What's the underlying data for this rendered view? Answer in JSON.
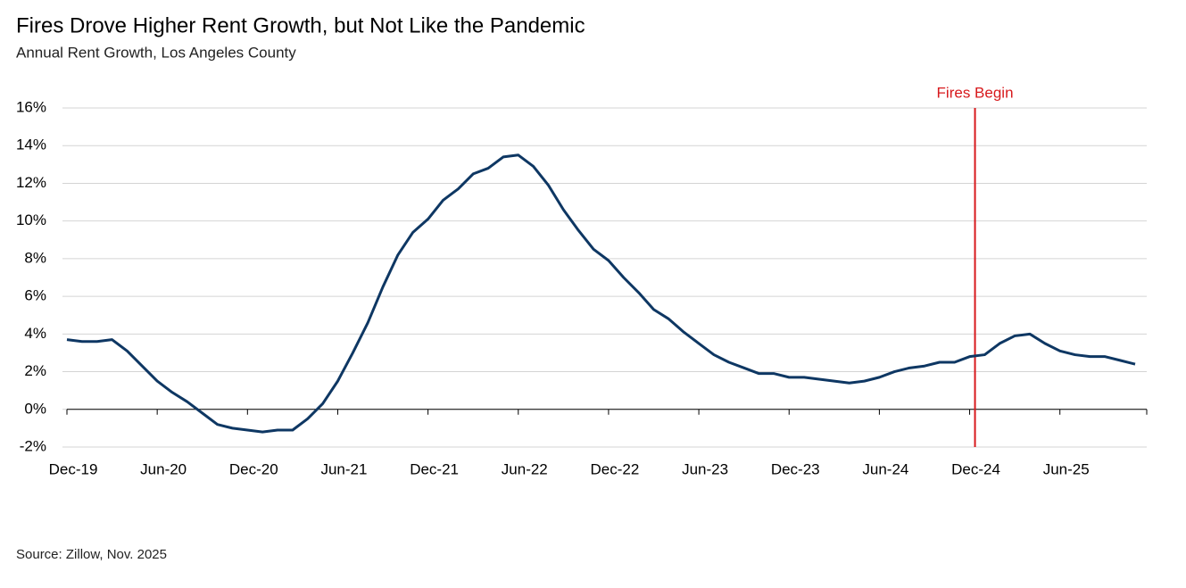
{
  "chart_data": {
    "type": "line",
    "title": "Fires Drove Higher Rent Growth, but Not Like the Pandemic",
    "subtitle": "Annual Rent Growth, Los Angeles County",
    "source": "Source: Zillow, Nov. 2025",
    "categories": [
      "Dec-19",
      null,
      null,
      null,
      null,
      null,
      "Jun-20",
      null,
      null,
      null,
      null,
      null,
      "Dec-20",
      null,
      null,
      null,
      null,
      null,
      "Jun-21",
      null,
      null,
      null,
      null,
      null,
      "Dec-21",
      null,
      null,
      null,
      null,
      null,
      "Jun-22",
      null,
      null,
      null,
      null,
      null,
      "Dec-22",
      null,
      null,
      null,
      null,
      null,
      "Jun-23",
      null,
      null,
      null,
      null,
      null,
      "Dec-23",
      null,
      null,
      null,
      null,
      null,
      "Jun-24",
      null,
      null,
      null,
      null,
      null,
      "Dec-24",
      null,
      null,
      null,
      null,
      null,
      "Jun-25",
      null,
      null,
      null,
      null,
      null
    ],
    "series": [
      {
        "name": "Annual Rent Growth",
        "color": "#0e3763",
        "values": [
          3.7,
          3.6,
          3.6,
          3.7,
          3.1,
          2.3,
          1.5,
          0.9,
          0.4,
          -0.2,
          -0.8,
          -1.0,
          -1.1,
          -1.2,
          -1.1,
          -1.1,
          -0.5,
          0.3,
          1.5,
          3.0,
          4.6,
          6.5,
          8.2,
          9.4,
          10.1,
          11.1,
          11.7,
          12.5,
          12.8,
          13.4,
          13.5,
          12.9,
          11.9,
          10.6,
          9.5,
          8.5,
          7.9,
          7.0,
          6.2,
          5.3,
          4.8,
          4.1,
          3.5,
          2.9,
          2.5,
          2.2,
          1.9,
          1.9,
          1.7,
          1.7,
          1.6,
          1.5,
          1.4,
          1.5,
          1.7,
          2.0,
          2.2,
          2.3,
          2.5,
          2.5,
          2.8,
          2.9,
          3.5,
          3.9,
          4.0,
          3.5,
          3.1,
          2.9,
          2.8,
          2.8,
          2.6,
          2.4
        ]
      }
    ],
    "ylim": [
      -2,
      16
    ],
    "yticks": [
      {
        "value": -2,
        "label": "-2%"
      },
      {
        "value": 0,
        "label": "0%"
      },
      {
        "value": 2,
        "label": "2%"
      },
      {
        "value": 4,
        "label": "4%"
      },
      {
        "value": 6,
        "label": "6%"
      },
      {
        "value": 8,
        "label": "8%"
      },
      {
        "value": 10,
        "label": "10%"
      },
      {
        "value": 12,
        "label": "12%"
      },
      {
        "value": 14,
        "label": "14%"
      },
      {
        "value": 16,
        "label": "16%"
      }
    ],
    "grid": true,
    "annotation": {
      "text": "Fires Begin",
      "at": "Dec-24",
      "color": "#d7191c"
    }
  }
}
